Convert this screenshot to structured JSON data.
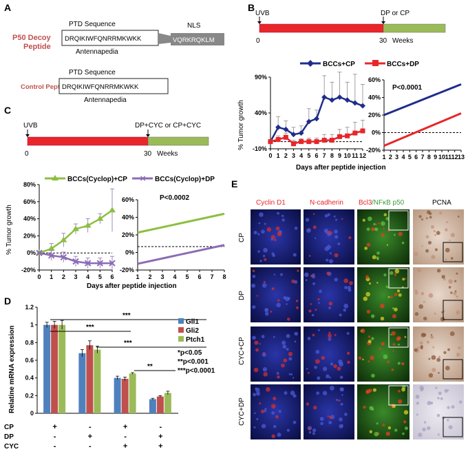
{
  "panels": {
    "A": {
      "letter": "A",
      "p50_name_line1": "P50 Decoy",
      "p50_name_line2": "Peptide",
      "ptd_title": "PTD Sequence",
      "ptd_seq": "DRQIKIWFQNRRMKWKK",
      "antennapedia": "Antennapedia",
      "nls_title": "NLS",
      "nls_seq": "VQRKRQKLM",
      "control_name": "Control Peptide",
      "ptd_title2": "PTD Sequence",
      "ptd_seq2": "DRQIKIWFQNRRMKWKK",
      "antennapedia2": "Antennapedia",
      "accent": "#c0504d"
    },
    "B": {
      "letter": "B",
      "timeline": {
        "start_label": "UVB",
        "end_label": "DP or CP",
        "zero": "0",
        "thirty": "30",
        "weeks": "Weeks"
      },
      "legend": [
        "BCCs+CP",
        "BCCs+DP"
      ],
      "pvalue": "P<0.0001",
      "ylabel": "% Tumor growth",
      "xlabel": "Days after peptide injection"
    },
    "C": {
      "letter": "C",
      "timeline": {
        "start_label": "UVB",
        "end_label": "DP+CYC or CP+CYC",
        "zero": "0",
        "thirty": "30",
        "weeks": "Weeks"
      },
      "legend": [
        "BCCs(Cyclop)+CP",
        "BCCs(Cyclop)+DP"
      ],
      "pvalue": "P<0.0002",
      "ylabel": "% Tumor growth",
      "xlabel": "Days after peptide injection"
    },
    "D": {
      "letter": "D",
      "ylabel": "Relatine mRNA expression",
      "sig_labels": [
        "***",
        "***",
        "***",
        "**"
      ],
      "stats": [
        "*p<0.05",
        "**p<0.001",
        "***p<0.0001"
      ],
      "row_labels": [
        "CP",
        "DP",
        "CYC"
      ],
      "signs": [
        [
          "+",
          "-",
          "+",
          "-"
        ],
        [
          "-",
          "+",
          "-",
          "+"
        ],
        [
          "-",
          "-",
          "+",
          "+"
        ]
      ]
    },
    "E": {
      "letter": "E",
      "col_labels": [
        "Cyclin D1",
        "N-cadherin",
        "Bcl3",
        "/NFκB p50",
        "PCNA"
      ],
      "row_labels": [
        "CP",
        "DP",
        "CYC+CP",
        "CYC+DP"
      ]
    }
  },
  "chart_data": [
    {
      "id": "B-left",
      "type": "line",
      "title": "",
      "xlabel": "Days after peptide injection",
      "ylabel": "% Tumor growth",
      "x": [
        0,
        1,
        2,
        3,
        4,
        5,
        6,
        7,
        8,
        9,
        10,
        11,
        12
      ],
      "xlim": [
        0,
        12
      ],
      "ylim": [
        -10,
        90
      ],
      "yticks": [
        "90%",
        "40%",
        "-10%"
      ],
      "series": [
        {
          "name": "BCCs+CP",
          "color": "#1f2d8a",
          "values": [
            0,
            20,
            17,
            10,
            12,
            28,
            32,
            62,
            58,
            62,
            58,
            54,
            50
          ],
          "err": [
            0,
            15,
            12,
            10,
            10,
            18,
            12,
            30,
            25,
            35,
            25,
            40,
            30
          ]
        },
        {
          "name": "BCCs+DP",
          "color": "#e8262a",
          "values": [
            0,
            3,
            6,
            -3,
            0,
            0,
            0,
            2,
            2,
            7,
            8,
            12,
            15
          ],
          "err": [
            0,
            5,
            6,
            5,
            4,
            5,
            5,
            8,
            8,
            10,
            12,
            15,
            15
          ]
        }
      ]
    },
    {
      "id": "B-right",
      "type": "line",
      "title": "P<0.0001",
      "xlabel": "",
      "ylabel": "",
      "x": [
        1,
        2,
        3,
        4,
        5,
        6,
        7,
        8,
        9,
        10,
        11,
        12,
        13
      ],
      "xlim": [
        1,
        13
      ],
      "ylim": [
        -20,
        60
      ],
      "yticks": [
        "60%",
        "40%",
        "20%",
        "0%",
        "-20%"
      ],
      "series": [
        {
          "name": "BCCs+CP fit",
          "color": "#1f2d8a",
          "start": 20,
          "end": 55
        },
        {
          "name": "BCCs+DP fit",
          "color": "#e8262a",
          "start": -15,
          "end": 22
        }
      ]
    },
    {
      "id": "C-left",
      "type": "line",
      "title": "",
      "xlabel": "Days after peptide injection",
      "ylabel": "% Tumor growth",
      "x": [
        0,
        1,
        2,
        3,
        4,
        5,
        6
      ],
      "xlim": [
        0,
        6
      ],
      "ylim": [
        -20,
        80
      ],
      "yticks": [
        "80%",
        "60%",
        "40%",
        "20%",
        "0%",
        "-20%"
      ],
      "series": [
        {
          "name": "BCCs(Cyclop)+CP",
          "color": "#8cbf3f",
          "values": [
            0,
            5,
            15,
            28,
            32,
            40,
            50
          ],
          "err": [
            0,
            6,
            8,
            6,
            8,
            6,
            25
          ]
        },
        {
          "name": "BCCs(Cyclop)+DP",
          "color": "#8b6bb5",
          "values": [
            0,
            -3,
            -5,
            -10,
            -12,
            -12,
            -12
          ],
          "err": [
            0,
            6,
            6,
            6,
            6,
            6,
            8
          ]
        }
      ]
    },
    {
      "id": "C-right",
      "type": "line",
      "title": "P<0.0002",
      "xlabel": "",
      "ylabel": "",
      "x": [
        1,
        2,
        3,
        4,
        5,
        6,
        7,
        8
      ],
      "xlim": [
        1,
        8
      ],
      "ylim": [
        -30,
        60
      ],
      "yticks": [
        "60%",
        "40%",
        "20%",
        "0%",
        "-20%"
      ],
      "series": [
        {
          "name": "CP fit",
          "color": "#8cbf3f",
          "start": 18,
          "end": 42
        },
        {
          "name": "DP fit",
          "color": "#8b6bb5",
          "start": -22,
          "end": 2
        }
      ]
    },
    {
      "id": "D",
      "type": "bar",
      "title": "",
      "xlabel": "",
      "ylabel": "Relatine mRNA expression",
      "ylim": [
        0,
        1.2
      ],
      "yticks": [
        "1.2",
        "1",
        "0.8",
        "0.6",
        "0.4",
        "0.2",
        "0"
      ],
      "groups": 4,
      "series": [
        {
          "name": "Gli1",
          "color": "#4f81bd",
          "values": [
            1.0,
            0.68,
            0.4,
            0.16
          ],
          "err": [
            0.03,
            0.04,
            0.02,
            0.01
          ]
        },
        {
          "name": "Gli2",
          "color": "#c0504d",
          "values": [
            1.0,
            0.77,
            0.39,
            0.19
          ],
          "err": [
            0.04,
            0.05,
            0.02,
            0.01
          ]
        },
        {
          "name": "Ptch1",
          "color": "#9bbb59",
          "values": [
            1.0,
            0.72,
            0.45,
            0.23
          ],
          "err": [
            0.05,
            0.04,
            0.01,
            0.02
          ]
        }
      ]
    }
  ]
}
